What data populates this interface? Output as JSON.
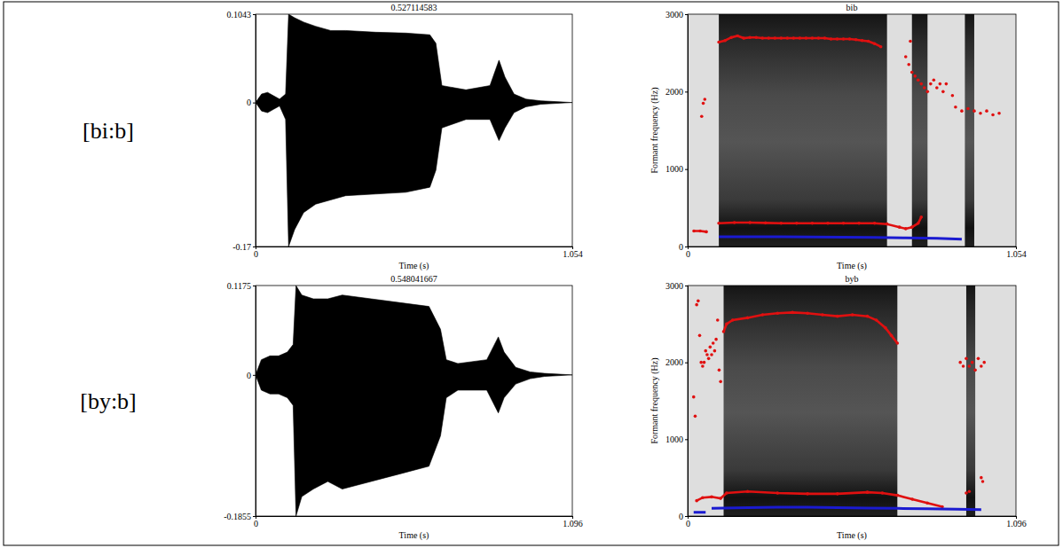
{
  "row_labels": [
    "[bi:b]",
    "[by:b]"
  ],
  "chart_data": [
    {
      "type": "area",
      "title": "0.527114583",
      "x_label": "Time (s)",
      "color": "#000000",
      "xlim": [
        0,
        1.054
      ],
      "ylim": [
        -0.17,
        0.1043
      ],
      "xticks": [
        0,
        1.054
      ],
      "yticks": [
        -0.17,
        0,
        0.1043
      ],
      "x": [
        0,
        0.02,
        0.04,
        0.06,
        0.08,
        0.1,
        0.11,
        0.13,
        0.16,
        0.2,
        0.25,
        0.3,
        0.4,
        0.5,
        0.58,
        0.6,
        0.62,
        0.7,
        0.78,
        0.81,
        0.83,
        0.86,
        0.9,
        0.95,
        1.054
      ],
      "series": [
        {
          "values": [
            0,
            0.01,
            0.012,
            0.008,
            0.004,
            0.01,
            0.1043,
            0.1,
            0.095,
            0.09,
            0.085,
            0.085,
            0.083,
            0.082,
            0.08,
            0.07,
            0.02,
            0.015,
            0.02,
            0.05,
            0.03,
            0.01,
            0.004,
            0.002,
            0
          ]
        },
        {
          "values": [
            0,
            -0.01,
            -0.012,
            -0.008,
            -0.004,
            -0.02,
            -0.17,
            -0.15,
            -0.13,
            -0.12,
            -0.115,
            -0.11,
            -0.108,
            -0.106,
            -0.1,
            -0.08,
            -0.03,
            -0.02,
            -0.02,
            -0.045,
            -0.03,
            -0.012,
            -0.005,
            -0.002,
            0
          ]
        }
      ]
    },
    {
      "type": "scatter",
      "title": "bib",
      "x_label": "Time (s)",
      "y_label": "Formant frequency (Hz)",
      "xlim": [
        0,
        1.054
      ],
      "ylim": [
        0,
        3000
      ],
      "xticks": [
        0,
        1.054
      ],
      "yticks": [
        0,
        1000,
        2000,
        3000
      ],
      "voiced_spans": [
        [
          0.1,
          0.64
        ],
        [
          0.72,
          0.77
        ],
        [
          0.89,
          0.92
        ]
      ],
      "series": [
        {
          "color": "#e01010",
          "marker": "circle",
          "line_style": "solid",
          "x": [
            0.1,
            0.12,
            0.14,
            0.16,
            0.18,
            0.2,
            0.22,
            0.24,
            0.26,
            0.28,
            0.3,
            0.32,
            0.34,
            0.36,
            0.38,
            0.4,
            0.42,
            0.44,
            0.46,
            0.48,
            0.5,
            0.52,
            0.54,
            0.56,
            0.58,
            0.6,
            0.62
          ],
          "values": [
            2640,
            2660,
            2700,
            2720,
            2690,
            2700,
            2700,
            2690,
            2690,
            2690,
            2690,
            2690,
            2690,
            2690,
            2690,
            2690,
            2690,
            2690,
            2680,
            2680,
            2680,
            2680,
            2670,
            2660,
            2650,
            2620,
            2580
          ]
        },
        {
          "color": "#e01010",
          "marker": "circle",
          "x": [
            0.045,
            0.05,
            0.055,
            0.7,
            0.71,
            0.715,
            0.72,
            0.73,
            0.74,
            0.75,
            0.76,
            0.77,
            0.78,
            0.79,
            0.8,
            0.81,
            0.82,
            0.83,
            0.85,
            0.86,
            0.88,
            0.9,
            0.92,
            0.94,
            0.96,
            0.98,
            1.0
          ],
          "values": [
            1680,
            1850,
            1900,
            2450,
            2350,
            2650,
            2250,
            2200,
            2150,
            2100,
            2050,
            2000,
            2100,
            2150,
            2050,
            2100,
            2000,
            2100,
            1950,
            1800,
            1750,
            1780,
            1750,
            1720,
            1750,
            1700,
            1720
          ]
        },
        {
          "color": "#e01010",
          "marker": "circle",
          "line_style": "solid",
          "x": [
            0.02,
            0.04,
            0.06,
            0.08,
            0.1,
            0.15,
            0.2,
            0.25,
            0.3,
            0.35,
            0.4,
            0.45,
            0.5,
            0.55,
            0.6,
            0.64,
            0.68,
            0.7,
            0.72,
            0.74,
            0.75
          ],
          "values": [
            200,
            200,
            190,
            null,
            300,
            310,
            310,
            305,
            300,
            300,
            300,
            300,
            300,
            300,
            300,
            290,
            250,
            230,
            250,
            300,
            380
          ]
        },
        {
          "color": "#1a1ad0",
          "line_style": "solid",
          "x": [
            0.1,
            0.2,
            0.3,
            0.4,
            0.5,
            0.6,
            0.7,
            0.8,
            0.88
          ],
          "values": [
            125,
            125,
            125,
            122,
            120,
            118,
            112,
            105,
            95
          ]
        }
      ]
    },
    {
      "type": "area",
      "title": "0.548041667",
      "x_label": "Time (s)",
      "color": "#000000",
      "xlim": [
        0,
        1.096
      ],
      "ylim": [
        -0.1855,
        0.1175
      ],
      "xticks": [
        0,
        1.096
      ],
      "yticks": [
        -0.1855,
        0,
        0.1175
      ],
      "x": [
        0,
        0.02,
        0.05,
        0.08,
        0.11,
        0.13,
        0.14,
        0.16,
        0.2,
        0.25,
        0.3,
        0.4,
        0.5,
        0.6,
        0.64,
        0.66,
        0.7,
        0.8,
        0.84,
        0.86,
        0.9,
        0.95,
        1.0,
        1.096
      ],
      "series": [
        {
          "values": [
            0,
            0.02,
            0.025,
            0.025,
            0.03,
            0.04,
            0.1175,
            0.105,
            0.1,
            0.1,
            0.105,
            0.1,
            0.095,
            0.09,
            0.06,
            0.02,
            0.015,
            0.02,
            0.05,
            0.03,
            0.01,
            0.004,
            0.002,
            0
          ]
        },
        {
          "values": [
            0,
            -0.02,
            -0.025,
            -0.025,
            -0.03,
            -0.04,
            -0.1855,
            -0.16,
            -0.15,
            -0.14,
            -0.15,
            -0.14,
            -0.13,
            -0.12,
            -0.08,
            -0.03,
            -0.02,
            -0.02,
            -0.05,
            -0.03,
            -0.012,
            -0.005,
            -0.002,
            0
          ]
        }
      ]
    },
    {
      "type": "scatter",
      "title": "byb",
      "x_label": "Time (s)",
      "y_label": "Formant frequency (Hz)",
      "xlim": [
        0,
        1.096
      ],
      "ylim": [
        0,
        3000
      ],
      "xticks": [
        0,
        1.096
      ],
      "yticks": [
        0,
        1000,
        2000,
        3000
      ],
      "voiced_spans": [
        [
          0.12,
          0.7
        ],
        [
          0.93,
          0.96
        ]
      ],
      "series": [
        {
          "color": "#e01010",
          "marker": "circle",
          "line_style": "solid",
          "x": [
            0.12,
            0.13,
            0.15,
            0.2,
            0.25,
            0.3,
            0.35,
            0.4,
            0.45,
            0.5,
            0.55,
            0.6,
            0.63,
            0.66,
            0.68,
            0.7
          ],
          "values": [
            2400,
            2500,
            2550,
            2580,
            2620,
            2640,
            2650,
            2640,
            2620,
            2600,
            2620,
            2600,
            2550,
            2450,
            2350,
            2250
          ]
        },
        {
          "color": "#e01010",
          "marker": "circle",
          "x": [
            0.02,
            0.025,
            0.03,
            0.035,
            0.04,
            0.045,
            0.05,
            0.055,
            0.06,
            0.065,
            0.07,
            0.075,
            0.08,
            0.085,
            0.09,
            0.095,
            0.1,
            0.105,
            0.11,
            0.91,
            0.92,
            0.93,
            0.94,
            0.95,
            0.96,
            0.97,
            0.98,
            0.99
          ],
          "values": [
            1550,
            1300,
            2750,
            2800,
            2350,
            2000,
            1950,
            2000,
            2150,
            2100,
            2050,
            2200,
            2100,
            2250,
            2150,
            2300,
            2550,
            1900,
            1750,
            2000,
            1950,
            2050,
            1950,
            2000,
            1900,
            2050,
            1950,
            2000
          ]
        },
        {
          "color": "#e01010",
          "marker": "circle",
          "line_style": "solid",
          "x": [
            0.03,
            0.05,
            0.08,
            0.11,
            0.13,
            0.2,
            0.3,
            0.4,
            0.5,
            0.6,
            0.65,
            0.7,
            0.75,
            0.8,
            0.85
          ],
          "values": [
            200,
            240,
            250,
            230,
            300,
            320,
            300,
            290,
            290,
            310,
            300,
            270,
            220,
            170,
            120
          ]
        },
        {
          "color": "#e01010",
          "marker": "circle",
          "x": [
            0.93,
            0.94,
            0.98,
            0.985
          ],
          "values": [
            300,
            320,
            500,
            450
          ]
        },
        {
          "color": "#1a1ad0",
          "line_style": "solid",
          "x": [
            0.02,
            0.04,
            0.06,
            0.07,
            0.08,
            0.2,
            0.3,
            0.4,
            0.5,
            0.6,
            0.7,
            0.8,
            0.9,
            0.98
          ],
          "values": [
            50,
            50,
            50,
            null,
            100,
            110,
            115,
            115,
            110,
            105,
            100,
            95,
            90,
            85
          ]
        }
      ]
    }
  ]
}
